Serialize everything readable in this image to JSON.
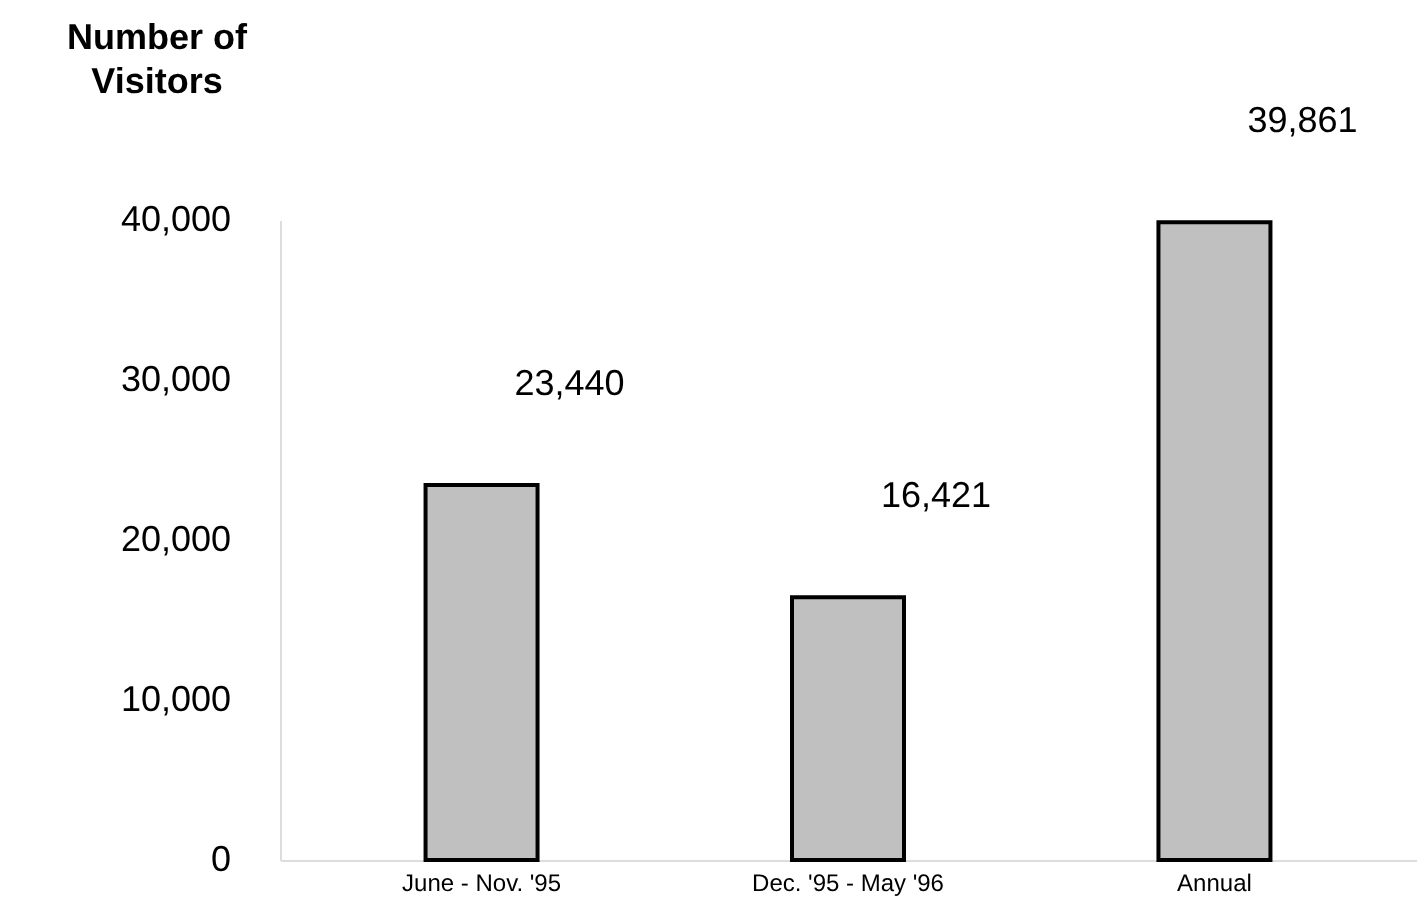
{
  "chart_data": {
    "type": "bar",
    "ylabel": "Number of Visitors",
    "categories": [
      "June - Nov. '95",
      "Dec. '95 - May '96",
      "Annual"
    ],
    "values": [
      23440,
      16421,
      39861
    ],
    "value_labels": [
      "23,440",
      "16,421",
      "39,861"
    ],
    "color": "#c0c0c0",
    "ylim": [
      0,
      40000
    ],
    "yticks": [
      0,
      {
        "value": 10000,
        "label": "10,000"
      },
      {
        "value": 20000,
        "label": "20,000"
      },
      {
        "value": 30000,
        "label": "30,000"
      },
      {
        "value": 40000,
        "label": "40,000"
      }
    ],
    "grid": false
  }
}
